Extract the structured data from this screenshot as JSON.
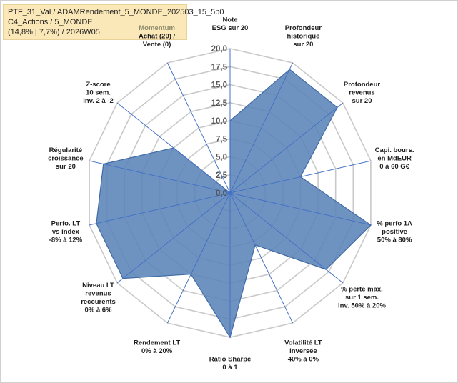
{
  "header": {
    "line1": "PTF_31_Val / ADAMRendement_5_MONDE_202503_15_5p0",
    "line2": "C4_Actions / 5_MONDE",
    "line3": "(14,8% | 7,7%) / 2026W05"
  },
  "chart_data": {
    "type": "radar",
    "title": "",
    "rmin": 0,
    "rmax": 20,
    "tick_values": [
      0,
      2.5,
      5,
      7.5,
      10,
      12.5,
      15,
      17.5,
      20
    ],
    "tick_labels": [
      "0,0",
      "2,5",
      "5,0",
      "7,5",
      "10,0",
      "12,5",
      "15,0",
      "17,5",
      "20,0"
    ],
    "grid": true,
    "series": [
      {
        "name": "",
        "color": "#5b84b8",
        "values": [
          10,
          19,
          19,
          10,
          20,
          17,
          8,
          20,
          12.5,
          19,
          19,
          18,
          10,
          0
        ]
      }
    ],
    "axes": [
      {
        "lines": [
          "Note",
          "ESG sur 20"
        ]
      },
      {
        "lines": [
          "Profondeur",
          "historique",
          "sur 20"
        ]
      },
      {
        "lines": [
          "Profondeur",
          "revenus",
          "sur 20"
        ]
      },
      {
        "lines": [
          "Capi. bours.",
          "en MdEUR",
          "0 à 60 G€"
        ]
      },
      {
        "lines": [
          "% perfo 1A",
          "positive",
          "50% à 80%"
        ]
      },
      {
        "lines": [
          "% perte max.",
          "sur 1 sem.",
          "inv. 50% à 20%"
        ]
      },
      {
        "lines": [
          "Volatilité LT",
          "inversée",
          "40% à 0%"
        ]
      },
      {
        "lines": [
          "Ratio Sharpe",
          "0 à 1"
        ]
      },
      {
        "lines": [
          "Rendement LT",
          "0% à 20%"
        ]
      },
      {
        "lines": [
          "Niveau LT",
          "revenus",
          "reccurents",
          "0% à 6%"
        ]
      },
      {
        "lines": [
          "Perfo. LT",
          "vs index",
          "-8% à 12%"
        ]
      },
      {
        "lines": [
          "Régularité",
          "croissance",
          "sur 20"
        ]
      },
      {
        "lines": [
          "Z-score",
          "10 sem.",
          "inv. 2 à -2"
        ]
      },
      {
        "lines": [
          "Momentum",
          "Achat (20) /",
          "Vente (0)"
        ]
      }
    ],
    "colors": {
      "fill": "#5b84b8",
      "outline": "#3f6aa6",
      "axis_line": "#4472c4",
      "grid": "#c9c9c9",
      "muted_label": "#8b8b6a"
    }
  }
}
